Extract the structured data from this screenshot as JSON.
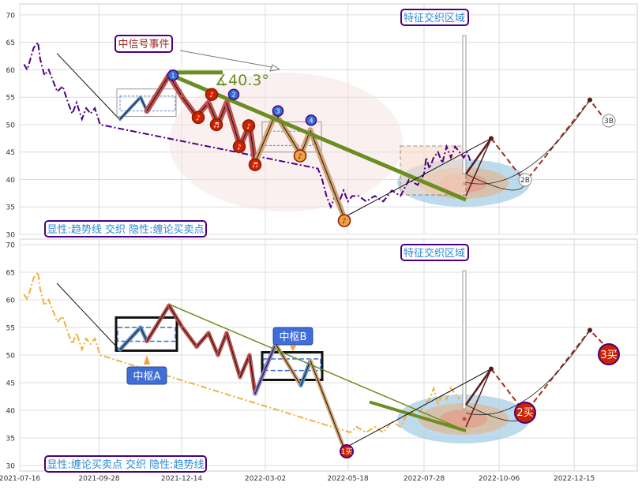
{
  "chart_data": [
    {
      "type": "line",
      "title": "",
      "xlabel": "",
      "ylabel": "",
      "ylim": [
        30,
        71
      ],
      "yticks": [
        30,
        35,
        40,
        45,
        50,
        55,
        60,
        65,
        70
      ],
      "grid": true,
      "series": [
        {
          "style": "dash-dot",
          "color": "#4b0082",
          "points": [
            [
              "2021-07-20",
              61
            ],
            [
              "2021-07-23",
              60
            ],
            [
              "2021-07-26",
              62
            ],
            [
              "2021-07-29",
              64
            ],
            [
              "2021-08-02",
              65
            ],
            [
              "2021-08-04",
              62
            ],
            [
              "2021-08-08",
              59
            ],
            [
              "2021-08-12",
              60
            ],
            [
              "2021-08-16",
              58
            ],
            [
              "2021-08-20",
              56
            ],
            [
              "2021-08-25",
              57
            ],
            [
              "2021-08-30",
              54
            ],
            [
              "2021-09-03",
              52
            ],
            [
              "2021-09-07",
              54
            ],
            [
              "2021-09-12",
              51
            ],
            [
              "2021-09-16",
              53
            ],
            [
              "2021-09-20",
              52
            ],
            [
              "2021-09-24",
              53
            ],
            [
              "2021-09-29",
              50
            ],
            [
              "2022-07-30",
              44
            ],
            [
              "2022-08-02",
              42
            ],
            [
              "2022-08-06",
              44
            ],
            [
              "2022-08-10",
              45
            ],
            [
              "2022-08-14",
              43
            ],
            [
              "2022-08-18",
              46
            ],
            [
              "2022-08-22",
              44
            ],
            [
              "2022-08-26",
              46
            ],
            [
              "2022-08-30",
              45
            ],
            [
              "2022-09-03",
              44
            ],
            [
              "2022-09-06",
              45
            ],
            [
              "2022-09-10",
              43
            ],
            [
              "2022-04-20",
              42
            ],
            [
              "2022-04-24",
              40
            ],
            [
              "2022-04-28",
              37
            ],
            [
              "2022-05-02",
              35
            ],
            [
              "2022-05-06",
              37
            ],
            [
              "2022-05-10",
              36
            ],
            [
              "2022-05-14",
              38
            ],
            [
              "2022-05-18",
              36
            ],
            [
              "2022-05-22",
              37
            ],
            [
              "2022-05-28",
              37
            ],
            [
              "2022-06-04",
              36
            ],
            [
              "2022-06-12",
              37
            ],
            [
              "2022-06-20",
              36
            ],
            [
              "2022-06-28",
              38
            ],
            [
              "2022-07-06",
              37
            ],
            [
              "2022-07-14",
              40
            ],
            [
              "2022-07-22",
              39
            ],
            [
              "2022-07-28",
              41
            ]
          ]
        }
      ],
      "labels": {
        "callout_event": "中信号事件",
        "angle": "∡40.3°",
        "region": "特征交织区域",
        "caption": "显性:趋势线 交织 隐性:缠论买卖点",
        "markers": [
          "1",
          "2",
          "3",
          "4",
          "♪",
          "♪",
          "♪",
          "♬",
          "♬",
          "♬",
          "♪",
          "♪"
        ],
        "point_2B": "2B",
        "point_3B": "3B"
      }
    },
    {
      "type": "line",
      "title": "",
      "xlabel": "",
      "ylabel": "",
      "ylim": [
        29,
        71
      ],
      "yticks": [
        30,
        35,
        40,
        45,
        50,
        55,
        60,
        65,
        70
      ],
      "xtick_labels": [
        "2021-07-16",
        "2021-09-28",
        "2021-12-14",
        "2022-03-02",
        "2022-05-18",
        "2022-07-28",
        "2022-10-06",
        "2022-12-15"
      ],
      "grid": true,
      "series": [
        {
          "style": "dash-dot",
          "color": "#f0b040",
          "points": [
            [
              "2021-07-20",
              61
            ],
            [
              "2021-07-23",
              60
            ],
            [
              "2021-07-26",
              62
            ],
            [
              "2021-07-29",
              64
            ],
            [
              "2021-08-02",
              65
            ],
            [
              "2021-08-04",
              62
            ],
            [
              "2021-08-08",
              59
            ],
            [
              "2021-08-12",
              60
            ],
            [
              "2021-08-16",
              58
            ],
            [
              "2021-08-20",
              56
            ],
            [
              "2021-08-25",
              57
            ],
            [
              "2021-08-30",
              54
            ],
            [
              "2021-09-03",
              52
            ],
            [
              "2021-09-07",
              54
            ],
            [
              "2021-09-12",
              51
            ],
            [
              "2021-09-16",
              53
            ],
            [
              "2021-09-20",
              52
            ],
            [
              "2021-09-24",
              53
            ],
            [
              "2021-09-29",
              50
            ],
            [
              "2022-05-20",
              36
            ],
            [
              "2022-05-26",
              37
            ],
            [
              "2022-06-04",
              36
            ],
            [
              "2022-06-12",
              37
            ],
            [
              "2022-06-20",
              36
            ],
            [
              "2022-06-28",
              38
            ],
            [
              "2022-07-06",
              37
            ],
            [
              "2022-07-14",
              40
            ],
            [
              "2022-07-22",
              39
            ],
            [
              "2022-07-28",
              41
            ],
            [
              "2022-08-02",
              42
            ],
            [
              "2022-08-06",
              44
            ],
            [
              "2022-08-10",
              41
            ],
            [
              "2022-08-14",
              43
            ],
            [
              "2022-08-18",
              42
            ],
            [
              "2022-08-22",
              44
            ],
            [
              "2022-08-26",
              43
            ],
            [
              "2022-08-30",
              42
            ]
          ]
        }
      ],
      "labels": {
        "zone_a": "中枢A",
        "zone_b": "中枢B",
        "region": "特征交织区域",
        "caption": "显性:缠论买卖点 交织 隐性:趋势线",
        "buy1": "1买",
        "buy2": "2买",
        "buy3": "3买"
      }
    }
  ],
  "colors": {
    "trend": "#6b8e23",
    "price_top": "#4b0082",
    "price_bottom": "#f0b040",
    "wave_red": "#c0504d",
    "wave_tan": "#d4a373",
    "wave_blue": "#5b8cc7",
    "marker_red": "#cc2200",
    "marker_blue": "#2f6fd6",
    "marker_orange": "#f5a040",
    "label_border": "#4b0082",
    "label_text_blue": "#2a8ad4",
    "callout_red": "#9c2a2a"
  }
}
